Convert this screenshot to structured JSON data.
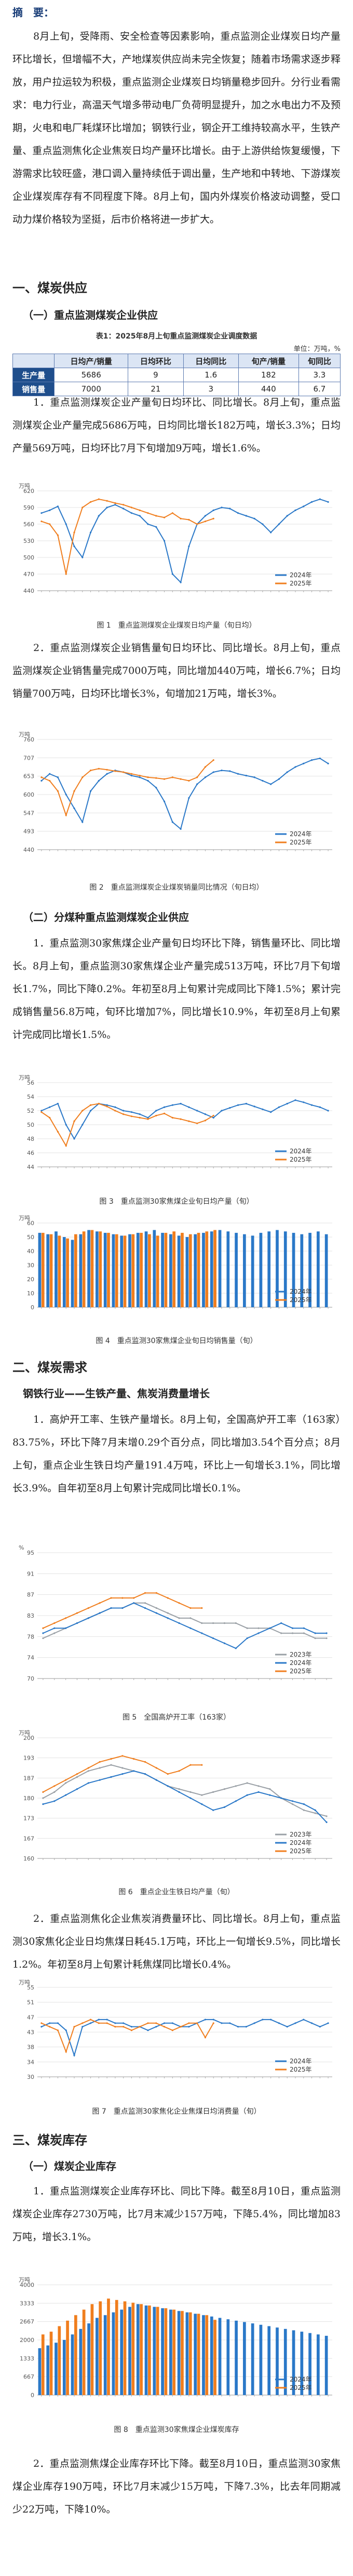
{
  "abstract_label": "摘　要：",
  "abstract_text": "8月上旬，受降雨、安全检查等因素影响，重点监测企业煤炭日均产量环比增长，但增幅不大，产地煤炭供应尚未完全恢复；随着市场需求逐步释放，用户拉运较为积极，重点监测企业煤炭日均销量稳步回升。分行业看需求：电力行业，高温天气增多带动电厂负荷明显提升，加之水电出力不及预期，火电和电厂耗煤环比增加；钢铁行业，钢企开工维持较高水平，生铁产量、重点监测焦化企业焦炭日均产量环比增长。由于上游供给恢复缓慢，下游需求比较旺盛，港口调入量持续低于调出量，生产地和中转地、下游煤炭企业煤炭库存有不同程度下降。8月上旬，国内外煤炭价格波动调整，受口动力煤价格较为坚挺，后市价格将进一步扩大。",
  "sec1": "一、煤炭供应",
  "sub1_1": "（一）重点监测煤炭企业供应",
  "table1": {
    "caption": "表1：2025年8月上旬重点监测煤炭企业调度数据",
    "unit": "单位：万吨，%",
    "headers": [
      "",
      "日均产/销量",
      "日均环比",
      "日均同比",
      "旬产/销量",
      "旬同比"
    ],
    "rows": [
      {
        "label": "生产量",
        "values": [
          "5686",
          "9",
          "1.6",
          "182",
          "3.3"
        ]
      },
      {
        "label": "销售量",
        "values": [
          "7000",
          "21",
          "3",
          "440",
          "6.7"
        ]
      }
    ]
  },
  "p1": "1．重点监测煤炭企业产量旬日均环比、同比增长。8月上旬，重点监测煤炭企业产量完成5686万吨，日均同比增长182万吨，增长3.3%；日均产量569万吨，日均环比7月下旬增加9万吨，增长1.6%。",
  "fig1_cap": "图 1　重点监测煤炭企业煤炭日均产量（旬日均）",
  "p2": "2．重点监测煤炭企业销售量旬日均环比、同比增长。8月上旬，重点监测煤炭企业销售量完成7000万吨，同比增加440万吨，增长6.7%；日均销量700万吨，日均环比增长3%，旬增加21万吨，增长3%。",
  "fig2_cap": "图 2　重点监测煤炭企业煤炭销量同比情况（旬日均）",
  "sub1_2": "（二）分煤种重点监测煤炭企业供应",
  "p3": "1．重点监测30家焦煤企业产量旬日均环比下降，销售量环比、同比增长。8月上旬，重点监测30家焦煤企业产量完成513万吨，环比7月下旬增长1.7%，同比下降0.2%。年初至8月上旬累计完成同比下降1.5%；累计完成销售量56.8万吨，旬环比增加7%，同比增长10.9%，年初至8月上旬累计完成同比增长1.5%。",
  "fig3_cap": "图 3　重点监测30家焦煤企业旬日均产量（旬）",
  "fig4_cap": "图 4　重点监测30家焦煤企业旬日均销售量（旬）",
  "sec2": "二、煤炭需求",
  "sub2_1": "钢铁行业——生铁产量、焦炭消费量增长",
  "p4": "1．高炉开工率、生铁产量增长。8月上旬，全国高炉开工率（163家）83.75%，环比下降7月末增0.29个百分点，同比增加3.54个百分点；8月上旬，重点企业生铁日均产量191.4万吨，环比上一旬增长3.1%，同比增长3.9%。自年初至8月上旬累计完成同比增长0.1%。",
  "fig5_cap": "图 5　全国高炉开工率（163家）",
  "fig6_cap": "图 6　重点企业生铁日均产量（旬）",
  "p5": "2．重点监测焦化企业焦炭消费量环比、同比增长。8月上旬，重点监测30家焦化企业日均焦煤日耗45.1万吨，环比上一旬增长9.5%，同比增长1.2%。年初至8月上旬累计耗焦煤同比增长0.4%。",
  "fig7_cap": "图 7　重点监测30家焦化企业焦煤日均消费量（旬）",
  "sec3": "三、煤炭库存",
  "sub3_1": "（一）煤炭企业库存",
  "p6": "1．重点监测煤炭企业库存环比、同比下降。截至8月10日，重点监测煤炭企业库存2730万吨，比7月末减少157万吨，下降5.4%，同比增加83万吨，增长3.1%。",
  "fig8_cap": "图 8　重点监测30家焦煤企业煤炭库存",
  "p7": "2．重点监测焦煤企业库存环比下降。截至8月10日，重点监测30家焦煤企业库存190万吨，环比7月末减少15万吨，下降7.3%，比去年同期减少22万吨，下降10%。",
  "legend_years": [
    "2024年",
    "2025年"
  ],
  "legend_years3": [
    "2023年",
    "2024年",
    "2025年"
  ],
  "colors": {
    "blue": "#2a78c8",
    "orange": "#f07e1e",
    "gray": "#9aa0a6",
    "title_blue": "#1a3e78"
  },
  "chart_data": [
    {
      "type": "line",
      "title": "图 1",
      "ylabel": "万吨",
      "ylim": [
        440,
        620
      ],
      "series": [
        {
          "name": "2024年",
          "values": [
            580,
            585,
            592,
            560,
            520,
            500,
            545,
            575,
            590,
            595,
            588,
            580,
            575,
            560,
            555,
            530,
            470,
            455,
            520,
            560,
            575,
            585,
            590,
            588,
            580,
            575,
            570,
            560,
            545,
            560,
            575,
            585,
            592,
            600,
            605,
            600
          ]
        },
        {
          "name": "2025年",
          "values": [
            565,
            560,
            540,
            470,
            545,
            590,
            600,
            605,
            602,
            598,
            595,
            590,
            585,
            580,
            575,
            572,
            580,
            570,
            568,
            560,
            565,
            570
          ]
        }
      ]
    },
    {
      "type": "line",
      "title": "图 2",
      "ylabel": "万吨",
      "ylim": [
        440,
        760
      ],
      "series": [
        {
          "name": "2024年",
          "values": [
            640,
            660,
            650,
            600,
            560,
            520,
            610,
            640,
            660,
            670,
            665,
            655,
            650,
            640,
            620,
            580,
            520,
            500,
            590,
            630,
            650,
            665,
            670,
            668,
            660,
            655,
            650,
            640,
            630,
            645,
            665,
            680,
            690,
            700,
            705,
            690
          ]
        },
        {
          "name": "2025年",
          "values": [
            650,
            640,
            610,
            540,
            610,
            650,
            670,
            675,
            672,
            668,
            665,
            660,
            655,
            650,
            648,
            645,
            650,
            645,
            640,
            650,
            680,
            700
          ]
        }
      ]
    },
    {
      "type": "line",
      "title": "图 3",
      "ylabel": "万吨",
      "ylim": [
        44,
        56
      ],
      "series": [
        {
          "name": "2024年",
          "values": [
            52,
            52.5,
            53,
            50,
            48,
            50,
            52,
            53,
            52.8,
            52.5,
            52,
            51.8,
            51.5,
            51,
            52,
            52.5,
            52.8,
            53,
            52.5,
            52,
            51.5,
            51,
            52,
            52.4,
            52.8,
            53,
            52.6,
            52.2,
            51.8,
            52.5,
            53,
            53.5,
            53.2,
            52.8,
            52.5,
            52
          ]
        },
        {
          "name": "2025年",
          "values": [
            51.8,
            51,
            49,
            47,
            50.5,
            52,
            52.8,
            53,
            52.6,
            52,
            51.5,
            51.2,
            51,
            50.8,
            51.3,
            51.6,
            51,
            50.8,
            50.5,
            50.2,
            50.6,
            51.3
          ]
        }
      ]
    },
    {
      "type": "bar",
      "title": "图 4",
      "ylabel": "万吨",
      "ylim": [
        0,
        60
      ],
      "series": [
        {
          "name": "2024年",
          "values": [
            53,
            52,
            54,
            50,
            48,
            52,
            55,
            54,
            53,
            52,
            51,
            52,
            53,
            54,
            55,
            53,
            52,
            51,
            50,
            52,
            53,
            54,
            55,
            54,
            53,
            52,
            51,
            53,
            54,
            55,
            54,
            53,
            52,
            53,
            54,
            52
          ]
        },
        {
          "name": "2025年",
          "values": [
            53,
            52,
            51,
            49,
            52,
            54,
            55,
            54,
            53,
            52,
            51,
            52,
            53,
            52,
            51,
            53,
            54,
            53,
            52,
            53,
            54,
            55
          ]
        }
      ]
    },
    {
      "type": "line",
      "title": "图 5",
      "ylabel": "%",
      "ylim": [
        70,
        95
      ],
      "series": [
        {
          "name": "2023年",
          "values": [
            78,
            79,
            80,
            81,
            82,
            83,
            84,
            84,
            85,
            85,
            84,
            83,
            82,
            82,
            81,
            81,
            81,
            81,
            80,
            80,
            80,
            79,
            79,
            79,
            78,
            78
          ]
        },
        {
          "name": "2024年",
          "values": [
            79,
            80,
            80,
            81,
            82,
            83,
            84,
            84,
            85,
            84,
            83,
            82,
            81,
            80,
            79,
            78,
            77,
            76,
            78,
            79,
            80,
            81,
            80,
            80,
            79,
            79
          ]
        },
        {
          "name": "2025年",
          "values": [
            80,
            81,
            82,
            83,
            84,
            85,
            86,
            86,
            86,
            87,
            87,
            86,
            85,
            84,
            84
          ]
        }
      ]
    },
    {
      "type": "line",
      "title": "图 6",
      "ylabel": "万吨",
      "ylim": [
        160,
        200
      ],
      "series": [
        {
          "name": "2023年",
          "values": [
            180,
            182,
            185,
            187,
            189,
            190,
            191,
            190,
            189,
            188,
            186,
            184,
            183,
            182,
            181,
            182,
            183,
            184,
            185,
            184,
            183,
            180,
            178,
            176,
            175,
            174
          ]
        },
        {
          "name": "2024年",
          "values": [
            178,
            179,
            181,
            183,
            185,
            186,
            187,
            188,
            189,
            188,
            186,
            184,
            182,
            180,
            178,
            176,
            177,
            179,
            181,
            182,
            181,
            180,
            179,
            178,
            176,
            172
          ]
        },
        {
          "name": "2025年",
          "values": [
            182,
            184,
            186,
            188,
            190,
            192,
            193,
            194,
            193,
            192,
            190,
            188,
            189,
            191,
            191
          ]
        }
      ]
    },
    {
      "type": "line",
      "title": "图 7",
      "ylabel": "万吨",
      "ylim": [
        30,
        55
      ],
      "series": [
        {
          "name": "2024年",
          "values": [
            44,
            45,
            45,
            43,
            36,
            44,
            45,
            46,
            46,
            45,
            45,
            44,
            44,
            43,
            44,
            45,
            45,
            44,
            44,
            45,
            46,
            46,
            45,
            45,
            44,
            44,
            45,
            46,
            46,
            45,
            44,
            45,
            46,
            45,
            44,
            45
          ]
        },
        {
          "name": "2025年",
          "values": [
            45,
            44,
            43,
            37,
            44,
            45,
            46,
            45,
            45,
            44,
            44,
            43,
            44,
            45,
            45,
            44,
            43,
            44,
            45,
            45,
            41,
            45
          ]
        }
      ]
    },
    {
      "type": "bar",
      "title": "图 8",
      "ylabel": "万吨",
      "ylim": [
        0,
        4000
      ],
      "series": [
        {
          "name": "2024年",
          "values": [
            1700,
            1800,
            1900,
            2000,
            2200,
            2400,
            2600,
            2800,
            2900,
            3000,
            3100,
            3200,
            3300,
            3250,
            3200,
            3150,
            3100,
            3050,
            3000,
            2950,
            2900,
            2850,
            2800,
            2750,
            2700,
            2650,
            2600,
            2550,
            2500,
            2450,
            2400,
            2350,
            2300,
            2250,
            2200,
            2150
          ]
        },
        {
          "name": "2025年",
          "values": [
            2200,
            2300,
            2500,
            2700,
            2900,
            3100,
            3300,
            3400,
            3500,
            3450,
            3400,
            3350,
            3300,
            3250,
            3200,
            3150,
            3100,
            3050,
            3000,
            2950,
            2900,
            2730
          ]
        }
      ]
    }
  ]
}
